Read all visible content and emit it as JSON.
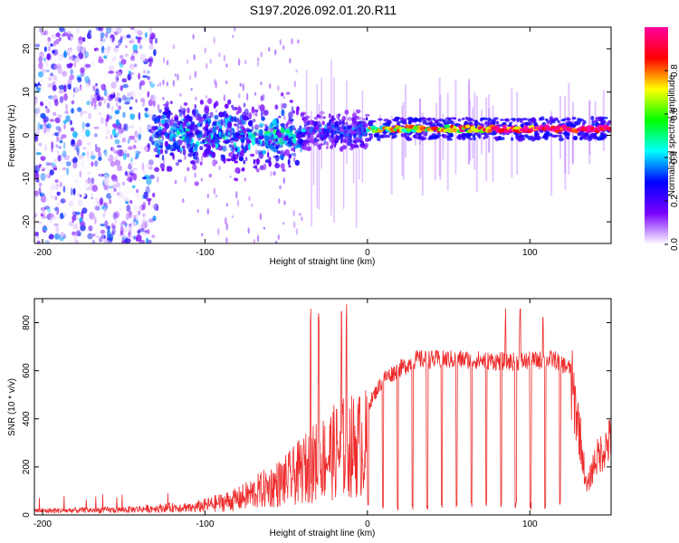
{
  "title": "S197.2026.092.01.20.R11",
  "chart_data": [
    {
      "type": "heatmap",
      "title": "",
      "xlabel": "Height of straight line (km)",
      "ylabel": "Frequency (Hz)",
      "xlim": [
        -205,
        150
      ],
      "ylim": [
        -25,
        25
      ],
      "xticks": [
        -200,
        -100,
        0,
        100
      ],
      "yticks": [
        -20,
        -10,
        0,
        10,
        20
      ],
      "colorbar": {
        "label": "Normalized spectral amplitude",
        "range": [
          0,
          1
        ],
        "ticks": [
          0.0,
          0.2,
          0.4,
          0.6,
          0.8
        ],
        "tick_labels": [
          "0.0",
          "0.2",
          "0.4",
          "0.6",
          "0.8"
        ],
        "colors": [
          "#ffffff",
          "#7a00ff",
          "#0000ff",
          "#00ffff",
          "#00ff00",
          "#ffff00",
          "#ff0000",
          "#ff00a0"
        ]
      },
      "regions": [
        {
          "x_range": [
            -205,
            -130
          ],
          "description_class": "noise",
          "max_amplitude": 0.25
        },
        {
          "x_range": [
            -130,
            -40
          ],
          "description_class": "signal_dispersed",
          "freq_center": 0,
          "max_amplitude": 0.5
        },
        {
          "x_range": [
            -40,
            0
          ],
          "description_class": "transition",
          "freq_center": 1,
          "max_amplitude": 0.4
        },
        {
          "x_range": [
            0,
            150
          ],
          "description_class": "clean_tone",
          "freq_center": 1.5,
          "max_amplitude": 1.0
        }
      ]
    },
    {
      "type": "line",
      "title": "",
      "xlabel": "Height of straight line (km)",
      "ylabel": "SNR (10 * v/v)",
      "xlim": [
        -205,
        150
      ],
      "ylim": [
        0,
        900
      ],
      "xticks": [
        -200,
        -100,
        0,
        100
      ],
      "yticks": [
        0,
        200,
        400,
        600,
        800
      ],
      "color": "#ee2b2b",
      "series": [
        {
          "name": "SNR",
          "envelope": [
            {
              "x": -205,
              "y": 20
            },
            {
              "x": -150,
              "y": 25
            },
            {
              "x": -110,
              "y": 40
            },
            {
              "x": -80,
              "y": 100
            },
            {
              "x": -50,
              "y": 220
            },
            {
              "x": -30,
              "y": 350
            },
            {
              "x": -15,
              "y": 430
            },
            {
              "x": 0,
              "y": 460
            },
            {
              "x": 10,
              "y": 580
            },
            {
              "x": 30,
              "y": 660
            },
            {
              "x": 60,
              "y": 660
            },
            {
              "x": 90,
              "y": 650
            },
            {
              "x": 115,
              "y": 660
            },
            {
              "x": 125,
              "y": 620
            },
            {
              "x": 130,
              "y": 420
            },
            {
              "x": 135,
              "y": 120
            },
            {
              "x": 140,
              "y": 250
            },
            {
              "x": 150,
              "y": 350
            }
          ],
          "spikes": [
            -35,
            -30,
            -16,
            -13,
            85,
            94,
            108
          ]
        }
      ]
    }
  ]
}
